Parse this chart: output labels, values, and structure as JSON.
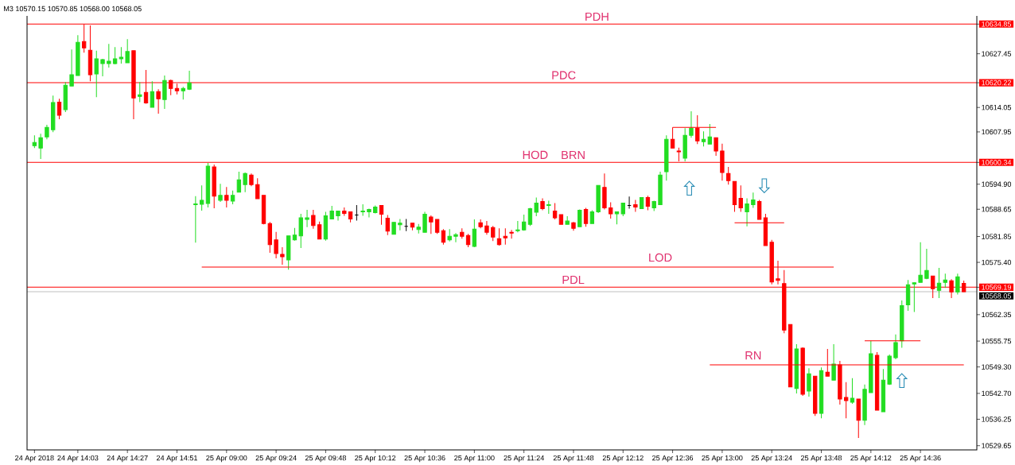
{
  "chart_data": {
    "type": "candlestick",
    "title": "M3 10570.15 10570.85 10568.00 10568.05",
    "categories": [
      "24 Apr 2018",
      null,
      null,
      null,
      null,
      null,
      null,
      "24 Apr 14:03",
      null,
      null,
      null,
      null,
      null,
      null,
      null,
      "24 Apr 14:27",
      null,
      null,
      null,
      null,
      null,
      null,
      null,
      "24 Apr 14:51",
      null,
      null,
      null,
      null,
      null,
      null,
      null,
      "25 Apr 09:00",
      null,
      null,
      null,
      null,
      null,
      null,
      null,
      "25 Apr 09:24",
      null,
      null,
      null,
      null,
      null,
      null,
      null,
      "25 Apr 09:48",
      null,
      null,
      null,
      null,
      null,
      null,
      null,
      "25 Apr 10:12",
      null,
      null,
      null,
      null,
      null,
      null,
      null,
      "25 Apr 10:36",
      null,
      null,
      null,
      null,
      null,
      null,
      null,
      "25 Apr 11:00",
      null,
      null,
      null,
      null,
      null,
      null,
      null,
      "25 Apr 11:24",
      null,
      null,
      null,
      null,
      null,
      null,
      null,
      "25 Apr 11:48",
      null,
      null,
      null,
      null,
      null,
      null,
      null,
      "25 Apr 12:12",
      null,
      null,
      null,
      null,
      null,
      null,
      null,
      "25 Apr 12:36",
      null,
      null,
      null,
      null,
      null,
      null,
      null,
      "25 Apr 13:00",
      null,
      null,
      null,
      null,
      null,
      null,
      null,
      "25 Apr 13:24",
      null,
      null,
      null,
      null,
      null,
      null,
      null,
      "25 Apr 13:48",
      null,
      null,
      null,
      null,
      null,
      null,
      null,
      "25 Apr 14:12",
      null,
      null,
      null,
      null,
      null,
      null,
      null,
      "25 Apr 14:36",
      null,
      null,
      null,
      null,
      null,
      null,
      null
    ],
    "ohlc": [
      [
        10604.5,
        10607.1,
        10603.9,
        10605.3
      ],
      [
        10603.9,
        10607.5,
        10601.2,
        10606.5
      ],
      [
        10606.7,
        10609.7,
        10606.1,
        10609.1
      ],
      [
        10608.5,
        10617.0,
        10607.9,
        10615.3
      ],
      [
        10615.4,
        10616.2,
        10611.1,
        10612.1
      ],
      [
        10613.5,
        10620.4,
        10612.9,
        10619.6
      ],
      [
        10619.4,
        10628.5,
        10619.4,
        10622.2
      ],
      [
        10622.0,
        10632.1,
        10622.0,
        10630.3
      ],
      [
        10630.5,
        10634.8,
        10627.7,
        10628.9
      ],
      [
        10628.3,
        10634.5,
        10620.6,
        10622.2
      ],
      [
        10622.4,
        10628.2,
        10616.6,
        10626.2
      ],
      [
        10625.0,
        10626.2,
        10621.8,
        10626.0
      ],
      [
        10625.0,
        10629.9,
        10624.0,
        10625.6
      ],
      [
        10625.0,
        10629.1,
        10624.8,
        10626.2
      ],
      [
        10626.2,
        10629.1,
        10625.0,
        10626.6
      ],
      [
        10625.2,
        10631.1,
        10625.2,
        10628.0
      ],
      [
        10628.2,
        10628.2,
        10611.1,
        10616.4
      ],
      [
        10616.8,
        10620.4,
        10615.4,
        10617.2
      ],
      [
        10617.8,
        10623.4,
        10615.0,
        10615.2
      ],
      [
        10614.1,
        10620.6,
        10614.1,
        10618.0
      ],
      [
        10618.0,
        10618.6,
        10612.5,
        10616.2
      ],
      [
        10616.0,
        10622.0,
        10613.7,
        10620.8
      ],
      [
        10620.8,
        10621.0,
        10617.1,
        10618.8
      ],
      [
        10618.8,
        10620.0,
        10617.3,
        10618.2
      ],
      [
        10618.2,
        10619.2,
        10616.0,
        10618.8
      ],
      [
        10618.6,
        10623.2,
        10618.4,
        10620.2
      ],
      [
        10589.8,
        10591.9,
        10580.3,
        10590.0
      ],
      [
        10589.9,
        10594.6,
        10588.3,
        10590.9
      ],
      [
        10590.1,
        10600.2,
        10589.1,
        10599.4
      ],
      [
        10599.2,
        10599.8,
        10588.9,
        10591.9
      ],
      [
        10590.9,
        10595.0,
        10590.5,
        10592.1
      ],
      [
        10592.1,
        10594.2,
        10589.1,
        10590.9
      ],
      [
        10590.7,
        10593.3,
        10589.9,
        10592.1
      ],
      [
        10592.9,
        10598.0,
        10592.9,
        10596.0
      ],
      [
        10594.8,
        10597.8,
        10592.9,
        10597.6
      ],
      [
        10597.2,
        10597.6,
        10594.4,
        10594.8
      ],
      [
        10594.8,
        10596.4,
        10591.3,
        10591.3
      ],
      [
        10592.1,
        10592.1,
        10584.9,
        10585.1
      ],
      [
        10585.1,
        10585.5,
        10577.8,
        10579.8
      ],
      [
        10581.0,
        10583.0,
        10576.4,
        10577.6
      ],
      [
        10577.4,
        10579.2,
        10574.8,
        10576.8
      ],
      [
        10576.0,
        10582.0,
        10573.6,
        10582.0
      ],
      [
        10581.0,
        10584.0,
        10580.8,
        10582.2
      ],
      [
        10582.0,
        10587.5,
        10579.0,
        10586.5
      ],
      [
        10586.1,
        10588.5,
        10584.2,
        10586.5
      ],
      [
        10587.1,
        10588.5,
        10583.8,
        10584.6
      ],
      [
        10584.8,
        10585.6,
        10581.2,
        10581.2
      ],
      [
        10581.2,
        10588.0,
        10580.8,
        10587.0
      ],
      [
        10586.2,
        10589.5,
        10586.2,
        10588.2
      ],
      [
        10587.0,
        10588.3,
        10585.8,
        10588.2
      ],
      [
        10588.2,
        10589.1,
        10587.0,
        10587.6
      ],
      [
        10588.0,
        10588.0,
        10585.4,
        10586.2
      ],
      [
        10587.2,
        10589.7,
        10585.8,
        10587.2
      ],
      [
        10588.0,
        10589.9,
        10587.0,
        10588.2
      ],
      [
        10588.0,
        10588.8,
        10586.6,
        10588.6
      ],
      [
        10587.8,
        10589.6,
        10587.6,
        10589.2
      ],
      [
        10589.6,
        10589.6,
        10584.8,
        10587.4
      ],
      [
        10586.4,
        10587.2,
        10582.2,
        10583.2
      ],
      [
        10582.4,
        10585.4,
        10582.4,
        10585.4
      ],
      [
        10584.8,
        10586.2,
        10583.4,
        10585.2
      ],
      [
        10584.4,
        10586.2,
        10583.2,
        10584.4
      ],
      [
        10585.2,
        10585.2,
        10583.4,
        10584.2
      ],
      [
        10583.6,
        10585.0,
        10582.6,
        10584.2
      ],
      [
        10582.9,
        10588.0,
        10582.9,
        10587.4
      ],
      [
        10586.7,
        10587.1,
        10582.5,
        10585.5
      ],
      [
        10586.1,
        10586.1,
        10582.5,
        10582.9
      ],
      [
        10583.3,
        10583.7,
        10579.8,
        10580.4
      ],
      [
        10581.0,
        10583.7,
        10580.6,
        10581.9
      ],
      [
        10581.9,
        10582.7,
        10580.4,
        10582.3
      ],
      [
        10582.9,
        10583.9,
        10581.3,
        10581.9
      ],
      [
        10582.1,
        10582.5,
        10579.2,
        10579.8
      ],
      [
        10579.4,
        10586.1,
        10579.2,
        10583.7
      ],
      [
        10585.3,
        10586.1,
        10583.9,
        10584.3
      ],
      [
        10584.5,
        10585.7,
        10582.3,
        10582.9
      ],
      [
        10584.1,
        10584.5,
        10580.7,
        10581.7
      ],
      [
        10581.3,
        10583.9,
        10579.6,
        10579.8
      ],
      [
        10581.9,
        10583.9,
        10579.8,
        10581.5
      ],
      [
        10582.9,
        10583.5,
        10581.3,
        10582.7
      ],
      [
        10583.3,
        10585.7,
        10582.9,
        10583.5
      ],
      [
        10583.5,
        10587.3,
        10583.3,
        10585.5
      ],
      [
        10584.9,
        10589.0,
        10584.5,
        10588.8
      ],
      [
        10587.9,
        10591.6,
        10586.9,
        10590.2
      ],
      [
        10590.6,
        10591.4,
        10588.4,
        10588.8
      ],
      [
        10589.6,
        10590.8,
        10587.5,
        10589.8
      ],
      [
        10588.2,
        10590.2,
        10586.1,
        10586.5
      ],
      [
        10587.3,
        10587.3,
        10584.9,
        10584.9
      ],
      [
        10584.9,
        10586.9,
        10584.9,
        10585.7
      ],
      [
        10585.3,
        10585.5,
        10583.3,
        10583.9
      ],
      [
        10584.3,
        10588.6,
        10584.3,
        10588.4
      ],
      [
        10588.6,
        10589.0,
        10584.3,
        10585.1
      ],
      [
        10585.1,
        10588.4,
        10585.1,
        10588.0
      ],
      [
        10588.0,
        10594.6,
        10587.7,
        10594.6
      ],
      [
        10594.1,
        10597.6,
        10588.6,
        10589.0
      ],
      [
        10589.0,
        10590.4,
        10586.3,
        10587.5
      ],
      [
        10587.5,
        10588.0,
        10584.9,
        10588.0
      ],
      [
        10587.5,
        10590.2,
        10586.9,
        10590.2
      ],
      [
        10589.6,
        10591.8,
        10588.8,
        10589.6
      ],
      [
        10589.8,
        10591.0,
        10588.0,
        10589.2
      ],
      [
        10588.8,
        10591.6,
        10588.8,
        10591.6
      ],
      [
        10591.6,
        10592.0,
        10588.4,
        10589.4
      ],
      [
        10589.0,
        10590.8,
        10588.2,
        10590.6
      ],
      [
        10589.8,
        10598.0,
        10589.8,
        10597.2
      ],
      [
        10598.0,
        10607.1,
        10595.8,
        10606.1
      ],
      [
        10606.1,
        10609.1,
        10603.9,
        10603.9
      ],
      [
        10603.2,
        10604.0,
        10600.6,
        10603.0
      ],
      [
        10601.4,
        10608.9,
        10600.6,
        10607.1
      ],
      [
        10607.1,
        10613.1,
        10606.5,
        10608.9
      ],
      [
        10608.9,
        10612.1,
        10604.9,
        10605.7
      ],
      [
        10605.5,
        10608.1,
        10604.3,
        10606.1
      ],
      [
        10604.9,
        10609.9,
        10604.9,
        10606.7
      ],
      [
        10606.5,
        10606.5,
        10602.0,
        10603.2
      ],
      [
        10603.2,
        10605.0,
        10595.8,
        10597.8
      ],
      [
        10597.6,
        10599.2,
        10594.8,
        10595.8
      ],
      [
        10595.6,
        10595.6,
        10588.0,
        10589.8
      ],
      [
        10591.4,
        10594.6,
        10588.0,
        10589.0
      ],
      [
        10588.0,
        10591.4,
        10584.4,
        10590.0
      ],
      [
        10589.8,
        10592.8,
        10589.0,
        10591.0
      ],
      [
        10590.6,
        10591.0,
        10586.1,
        10586.1
      ],
      [
        10586.5,
        10587.5,
        10579.6,
        10579.6
      ],
      [
        10580.4,
        10581.0,
        10569.9,
        10570.5
      ],
      [
        10571.3,
        10575.8,
        10569.9,
        10570.9
      ],
      [
        10570.1,
        10573.5,
        10557.7,
        10558.5
      ],
      [
        10559.9,
        10559.9,
        10544.3,
        10544.3
      ],
      [
        10543.9,
        10555.0,
        10542.7,
        10553.8
      ],
      [
        10554.0,
        10554.2,
        10542.1,
        10542.5
      ],
      [
        10543.3,
        10549.0,
        10541.9,
        10547.6
      ],
      [
        10547.0,
        10547.0,
        10537.1,
        10537.7
      ],
      [
        10537.7,
        10549.2,
        10536.5,
        10548.4
      ],
      [
        10548.0,
        10553.8,
        10547.0,
        10547.0
      ],
      [
        10546.0,
        10555.0,
        10546.0,
        10550.0
      ],
      [
        10549.8,
        10550.8,
        10539.9,
        10541.3
      ],
      [
        10541.7,
        10545.5,
        10536.5,
        10540.9
      ],
      [
        10540.5,
        10546.5,
        10540.1,
        10541.5
      ],
      [
        10541.3,
        10541.3,
        10531.6,
        10536.0
      ],
      [
        10536.0,
        10544.9,
        10534.8,
        10543.7
      ],
      [
        10542.9,
        10555.8,
        10542.9,
        10552.6
      ],
      [
        10552.2,
        10553.0,
        10538.5,
        10538.5
      ],
      [
        10538.1,
        10548.8,
        10538.1,
        10546.0
      ],
      [
        10545.0,
        10552.4,
        10544.8,
        10552.0
      ],
      [
        10551.6,
        10557.4,
        10551.2,
        10555.4
      ],
      [
        10555.8,
        10565.9,
        10554.1,
        10564.6
      ],
      [
        10564.8,
        10571.0,
        10563.3,
        10569.8
      ],
      [
        10570.0,
        10570.4,
        10563.0,
        10570.3
      ],
      [
        10570.4,
        10580.4,
        10570.4,
        10572.2
      ],
      [
        10571.4,
        10578.8,
        10571.2,
        10573.4
      ],
      [
        10572.0,
        10572.0,
        10566.5,
        10568.8
      ],
      [
        10568.4,
        10574.0,
        10566.5,
        10570.2
      ],
      [
        10570.4,
        10572.6,
        10569.0,
        10571.0
      ],
      [
        10570.8,
        10571.2,
        10566.5,
        10568.0
      ],
      [
        10568.0,
        10572.6,
        10567.4,
        10571.8
      ],
      [
        10570.15,
        10570.85,
        10568.0,
        10568.05
      ]
    ],
    "colors": [
      "#22dd22",
      "#22dd22",
      "#22dd22",
      "#22dd22",
      "#ff0000",
      "#22dd22",
      "#22dd22",
      "#22dd22",
      "#ff0000",
      "#ff0000",
      "#22dd22",
      "#22dd22",
      "#22dd22",
      "#22dd22",
      "#22dd22",
      "#22dd22",
      "#ff0000",
      "#22dd22",
      "#ff0000",
      "#22dd22",
      "#ff0000",
      "#22dd22",
      "#ff0000",
      "#ff0000",
      "#22dd22",
      "#22dd22",
      "#22dd22",
      "#22dd22",
      "#22dd22",
      "#ff0000",
      "#22dd22",
      "#ff0000",
      "#22dd22",
      "#22dd22",
      "#22dd22",
      "#ff0000",
      "#ff0000",
      "#ff0000",
      "#ff0000",
      "#ff0000",
      "#ff0000",
      "#22dd22",
      "#22dd22",
      "#22dd22",
      "#22dd22",
      "#ff0000",
      "#ff0000",
      "#22dd22",
      "#22dd22",
      "#22dd22",
      "#ff0000",
      "#ff0000",
      "#000000",
      "#22dd22",
      "#22dd22",
      "#22dd22",
      "#ff0000",
      "#ff0000",
      "#22dd22",
      "#22dd22",
      "#000000",
      "#ff0000",
      "#22dd22",
      "#22dd22",
      "#ff0000",
      "#ff0000",
      "#ff0000",
      "#22dd22",
      "#22dd22",
      "#ff0000",
      "#ff0000",
      "#22dd22",
      "#ff0000",
      "#ff0000",
      "#ff0000",
      "#ff0000",
      "#ff0000",
      "#ff0000",
      "#22dd22",
      "#22dd22",
      "#22dd22",
      "#22dd22",
      "#ff0000",
      "#22dd22",
      "#ff0000",
      "#ff0000",
      "#22dd22",
      "#ff0000",
      "#22dd22",
      "#ff0000",
      "#22dd22",
      "#22dd22",
      "#ff0000",
      "#ff0000",
      "#22dd22",
      "#22dd22",
      "#000000",
      "#ff0000",
      "#22dd22",
      "#ff0000",
      "#22dd22",
      "#22dd22",
      "#22dd22",
      "#ff0000",
      "#ff0000",
      "#22dd22",
      "#22dd22",
      "#ff0000",
      "#22dd22",
      "#22dd22",
      "#ff0000",
      "#ff0000",
      "#ff0000",
      "#ff0000",
      "#ff0000",
      "#22dd22",
      "#22dd22",
      "#ff0000",
      "#ff0000",
      "#ff0000",
      "#ff0000",
      "#ff0000",
      "#ff0000",
      "#22dd22",
      "#ff0000",
      "#22dd22",
      "#ff0000",
      "#22dd22",
      "#ff0000",
      "#22dd22",
      "#ff0000",
      "#ff0000",
      "#22dd22",
      "#ff0000",
      "#22dd22",
      "#22dd22",
      "#ff0000",
      "#22dd22",
      "#22dd22",
      "#22dd22",
      "#22dd22",
      "#22dd22",
      "#22dd22",
      "#22dd22",
      "#22dd22",
      "#ff0000",
      "#22dd22",
      "#22dd22",
      "#ff0000",
      "#22dd22",
      "#ff0000"
    ],
    "ylim": [
      10528.6,
      10636.9
    ],
    "yticks": [
      10634.85,
      10627.45,
      10620.22,
      10614.05,
      10607.95,
      10600.34,
      {
        "value": 10594.9,
        "label": "10594.90"
      },
      10588.65,
      10581.85,
      {
        "value": 10575.4,
        "label": "10575.40"
      },
      10569.19,
      10562.35,
      10555.75,
      {
        "value": 10549.3,
        "label": "10549.30"
      },
      {
        "value": 10542.7,
        "label": "10542.70"
      },
      10536.25,
      10529.65
    ],
    "ref_lines": [
      {
        "axis": "y",
        "value": 10634.85,
        "label": "PDH",
        "color": "#ff0000"
      },
      {
        "axis": "y",
        "value": 10620.22,
        "label": "PDC",
        "color": "#ff0000"
      },
      {
        "axis": "y",
        "value": 10600.34,
        "label": "HOD",
        "color": "#ff0000"
      },
      {
        "axis": "y",
        "value": 10569.19,
        "label": "PDL",
        "color": "#ff0000"
      },
      {
        "axis": "y",
        "value": 10568.05,
        "label": "10568.05",
        "color": "#c0c0c0"
      }
    ],
    "annotations": [
      {
        "text": "BRN",
        "y": 10600.34
      }
    ],
    "series": [
      {
        "type": "line",
        "name": "LOD",
        "color": "#ff0000",
        "values": [
          null,
          null,
          null,
          null,
          null,
          null,
          null,
          null,
          null,
          null,
          null,
          null,
          null,
          null,
          null,
          null,
          null,
          null,
          null,
          null,
          null,
          null,
          null,
          null,
          null,
          null,
          null,
          10574.2,
          10574.2,
          10574.2,
          10574.2,
          10574.2,
          10574.2,
          10574.2,
          10574.2,
          10574.2,
          10574.2,
          10574.2,
          10574.2,
          10574.2,
          10574.2,
          10574.2,
          10574.2,
          10574.2,
          10574.2,
          10574.2,
          10574.2,
          10574.2,
          10574.2,
          10574.2,
          10574.2,
          10574.2,
          10574.2,
          10574.2,
          10574.2,
          10574.2,
          10574.2,
          10574.2,
          10574.2,
          10574.2,
          10574.2,
          10574.2,
          10574.2,
          10574.2,
          10574.2,
          10574.2,
          10574.2,
          10574.2,
          10574.2,
          10574.2,
          10574.2,
          10574.2,
          10574.2,
          10574.2,
          10574.2,
          10574.2,
          10574.2,
          10574.2,
          10574.2,
          10574.2,
          10574.2,
          10574.2,
          10574.2,
          10574.2,
          10574.2,
          10574.2,
          10574.2,
          10574.2,
          10574.2,
          10574.2,
          10574.2,
          10574.2,
          10574.2,
          10574.2,
          10574.2,
          10574.2,
          10574.2,
          10574.2,
          10574.2,
          10574.2,
          10574.2,
          10574.2,
          10574.2,
          10574.2,
          10574.2,
          10574.2,
          10574.2,
          10574.2,
          10574.2,
          10574.2,
          10574.2,
          10574.2,
          10574.2,
          10574.2,
          10574.2,
          10574.2,
          10574.2,
          10574.2,
          10574.2,
          10574.2,
          10574.2,
          10574.2,
          10574.2,
          10574.2,
          10574.2,
          10574.2,
          10574.2,
          10574.2,
          10574.2,
          10574.2,
          null,
          null,
          null,
          null,
          null,
          null,
          null,
          null,
          null,
          null,
          null,
          null,
          null,
          null,
          null,
          null,
          null,
          null,
          null,
          null,
          null
        ]
      },
      {
        "type": "line",
        "name": "RN",
        "color": "#ff0000",
        "values": [
          null,
          null,
          null,
          null,
          null,
          null,
          null,
          null,
          null,
          null,
          null,
          null,
          null,
          null,
          null,
          null,
          null,
          null,
          null,
          null,
          null,
          null,
          null,
          null,
          null,
          null,
          null,
          null,
          null,
          null,
          null,
          null,
          null,
          null,
          null,
          null,
          null,
          null,
          null,
          null,
          null,
          null,
          null,
          null,
          null,
          null,
          null,
          null,
          null,
          null,
          null,
          null,
          null,
          null,
          null,
          null,
          null,
          null,
          null,
          null,
          null,
          null,
          null,
          null,
          null,
          null,
          null,
          null,
          null,
          null,
          null,
          null,
          null,
          null,
          null,
          null,
          null,
          null,
          null,
          null,
          null,
          null,
          null,
          null,
          null,
          null,
          null,
          null,
          null,
          null,
          null,
          null,
          null,
          null,
          null,
          null,
          null,
          null,
          null,
          null,
          null,
          null,
          null,
          null,
          null,
          null,
          null,
          null,
          null,
          10549.8,
          10549.8,
          10549.8,
          10549.8,
          10549.8,
          10549.8,
          10549.8,
          10549.8,
          10549.8,
          10549.8,
          10549.8,
          10549.8,
          10549.8,
          10549.8,
          10549.8,
          10549.8,
          10549.8,
          10549.8,
          10549.8,
          10549.8,
          10549.8,
          10549.8,
          10549.8,
          10549.8,
          10549.8,
          10549.8,
          10549.8,
          10549.8,
          10549.8,
          10549.8,
          10549.8,
          10549.8,
          10549.8,
          10549.8,
          10549.8,
          10549.8,
          10549.8,
          10549.8,
          10549.8,
          10549.8,
          10549.8,
          10549.8
        ]
      },
      {
        "type": "line",
        "color": "#ff0000",
        "values": [
          null,
          null,
          null,
          null,
          null,
          null,
          null,
          null,
          null,
          null,
          null,
          null,
          null,
          null,
          null,
          null,
          null,
          null,
          null,
          null,
          null,
          null,
          null,
          null,
          null,
          null,
          null,
          null,
          null,
          null,
          null,
          null,
          null,
          null,
          null,
          null,
          null,
          null,
          null,
          null,
          null,
          null,
          null,
          null,
          null,
          null,
          null,
          null,
          null,
          null,
          null,
          null,
          null,
          null,
          null,
          null,
          null,
          null,
          null,
          null,
          null,
          null,
          null,
          null,
          null,
          null,
          null,
          null,
          null,
          null,
          null,
          null,
          null,
          null,
          null,
          null,
          null,
          null,
          null,
          null,
          null,
          null,
          null,
          null,
          null,
          null,
          null,
          null,
          null,
          null,
          null,
          null,
          null,
          null,
          null,
          null,
          null,
          null,
          null,
          null,
          null,
          null,
          null,
          10609.1,
          10609.1,
          10609.1,
          10609.1,
          10609.1,
          10609.1,
          10609.1,
          10609.1,
          null,
          null,
          null,
          null,
          null,
          null,
          null,
          null,
          null,
          null,
          null,
          null,
          null,
          null,
          null,
          null,
          null,
          null,
          null,
          null,
          null,
          null,
          null,
          null,
          null,
          null,
          null,
          null,
          null,
          null,
          null,
          null,
          null,
          null,
          null,
          null,
          null,
          null,
          null,
          null
        ]
      },
      {
        "type": "line",
        "color": "#ff0000",
        "values": [
          null,
          null,
          null,
          null,
          null,
          null,
          null,
          null,
          null,
          null,
          null,
          null,
          null,
          null,
          null,
          null,
          null,
          null,
          null,
          null,
          null,
          null,
          null,
          null,
          null,
          null,
          null,
          null,
          null,
          null,
          null,
          null,
          null,
          null,
          null,
          null,
          null,
          null,
          null,
          null,
          null,
          null,
          null,
          null,
          null,
          null,
          null,
          null,
          null,
          null,
          null,
          null,
          null,
          null,
          null,
          null,
          null,
          null,
          null,
          null,
          null,
          null,
          null,
          null,
          null,
          null,
          null,
          null,
          null,
          null,
          null,
          null,
          null,
          null,
          null,
          null,
          null,
          null,
          null,
          null,
          null,
          null,
          null,
          null,
          null,
          null,
          null,
          null,
          null,
          null,
          null,
          null,
          null,
          null,
          null,
          null,
          null,
          null,
          null,
          null,
          null,
          null,
          null,
          null,
          null,
          null,
          null,
          null,
          null,
          null,
          null,
          null,
          null,
          10585.3,
          10585.3,
          10585.3,
          10585.3,
          10585.3,
          10585.3,
          10585.3,
          10585.3,
          10585.3,
          null,
          null,
          null,
          null,
          null,
          null,
          null,
          null,
          null,
          null,
          null,
          null,
          null,
          null,
          null,
          null,
          null,
          null,
          null,
          null,
          null,
          null,
          null,
          null,
          null,
          null,
          null,
          null,
          null
        ]
      },
      {
        "type": "line",
        "color": "#ff0000",
        "values": [
          null,
          null,
          null,
          null,
          null,
          null,
          null,
          null,
          null,
          null,
          null,
          null,
          null,
          null,
          null,
          null,
          null,
          null,
          null,
          null,
          null,
          null,
          null,
          null,
          null,
          null,
          null,
          null,
          null,
          null,
          null,
          null,
          null,
          null,
          null,
          null,
          null,
          null,
          null,
          null,
          null,
          null,
          null,
          null,
          null,
          null,
          null,
          null,
          null,
          null,
          null,
          null,
          null,
          null,
          null,
          null,
          null,
          null,
          null,
          null,
          null,
          null,
          null,
          null,
          null,
          null,
          null,
          null,
          null,
          null,
          null,
          null,
          null,
          null,
          null,
          null,
          null,
          null,
          null,
          null,
          null,
          null,
          null,
          null,
          null,
          null,
          null,
          null,
          null,
          null,
          null,
          null,
          null,
          null,
          null,
          null,
          null,
          null,
          null,
          null,
          null,
          null,
          null,
          null,
          null,
          null,
          null,
          null,
          null,
          null,
          null,
          null,
          null,
          null,
          null,
          null,
          null,
          null,
          null,
          null,
          null,
          null,
          null,
          null,
          null,
          null,
          null,
          null,
          null,
          null,
          null,
          null,
          null,
          null,
          10555.8,
          10555.8,
          10555.8,
          10555.8,
          10555.8,
          10555.8,
          10555.8,
          10555.8,
          10555.8,
          10555.8,
          null,
          null,
          null,
          null,
          null,
          null,
          null
        ]
      }
    ]
  }
}
